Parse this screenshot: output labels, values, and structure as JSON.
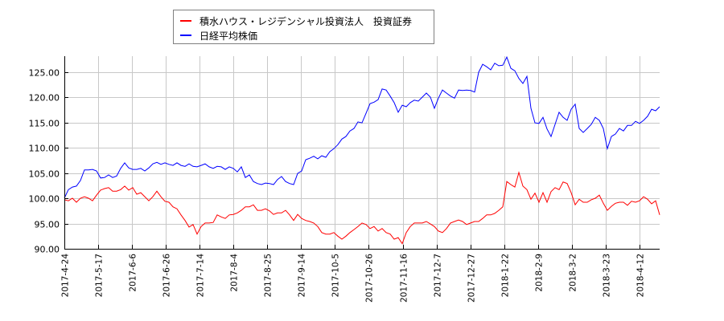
{
  "legend": {
    "items": [
      {
        "label": "積水ハウス・レジデンシャル投資法人　投資証券",
        "color": "#ff0000"
      },
      {
        "label": "日経平均株価",
        "color": "#0000ff"
      }
    ]
  },
  "chart_data": {
    "type": "line",
    "title": "",
    "xlabel": "",
    "ylabel": "",
    "ylim": [
      90,
      128
    ],
    "grid": true,
    "legend_position": "top",
    "y_ticks": [
      "90.00",
      "95.00",
      "100.00",
      "105.00",
      "110.00",
      "115.00",
      "120.00",
      "125.00"
    ],
    "x_ticks": [
      "2017-4-24",
      "2017-5-17",
      "2017-6-6",
      "2017-6-26",
      "2017-7-14",
      "2017-8-4",
      "2017-8-25",
      "2017-9-14",
      "2017-10-5",
      "2017-10-26",
      "2017-11-16",
      "2017-12-7",
      "2017-12-27",
      "2018-1-22",
      "2018-2-9",
      "2018-3-2",
      "2018-3-23",
      "2018-4-12"
    ],
    "x_range": [
      "2017-4-24",
      "2018-4-27"
    ],
    "series": [
      {
        "name": "積水ハウス・レジデンシャル投資法人　投資証券",
        "color": "#ff0000",
        "values": [
          99.7,
          99.5,
          100.0,
          99.2,
          100.0,
          100.3,
          100.0,
          99.5,
          100.6,
          101.6,
          101.9,
          102.1,
          101.4,
          101.4,
          101.7,
          102.4,
          101.6,
          102.1,
          100.8,
          101.1,
          100.3,
          99.5,
          100.3,
          101.4,
          100.3,
          99.4,
          99.2,
          98.3,
          97.9,
          96.7,
          95.6,
          94.3,
          94.8,
          92.9,
          94.4,
          95.1,
          95.1,
          95.2,
          96.7,
          96.3,
          96.0,
          96.7,
          96.8,
          97.1,
          97.6,
          98.3,
          98.3,
          98.7,
          97.6,
          97.6,
          97.9,
          97.5,
          96.8,
          97.1,
          97.1,
          97.6,
          96.7,
          95.6,
          96.8,
          96.0,
          95.6,
          95.4,
          95.1,
          94.4,
          93.2,
          92.9,
          92.9,
          93.2,
          92.5,
          91.9,
          92.5,
          93.2,
          93.8,
          94.4,
          95.1,
          94.8,
          94.0,
          94.4,
          93.5,
          94.0,
          93.2,
          92.9,
          91.9,
          92.2,
          91.0,
          93.2,
          94.4,
          95.1,
          95.1,
          95.1,
          95.4,
          94.9,
          94.4,
          93.5,
          93.2,
          94.0,
          95.1,
          95.4,
          95.7,
          95.4,
          94.8,
          95.1,
          95.4,
          95.4,
          96.0,
          96.7,
          96.7,
          97.0,
          97.6,
          98.3,
          103.3,
          102.7,
          102.2,
          105.1,
          102.4,
          101.7,
          99.8,
          101.0,
          99.2,
          101.1,
          99.2,
          101.3,
          102.1,
          101.7,
          103.2,
          102.9,
          101.1,
          98.7,
          99.8,
          99.2,
          99.2,
          99.7,
          100.0,
          100.6,
          99.0,
          97.6,
          98.4,
          99.0,
          99.2,
          99.2,
          98.6,
          99.4,
          99.2,
          99.5,
          100.3,
          99.8,
          98.9,
          99.5,
          96.7
        ]
      },
      {
        "name": "日経平均株価",
        "color": "#0000ff",
        "values": [
          100.0,
          101.7,
          102.2,
          102.4,
          103.5,
          105.6,
          105.6,
          105.7,
          105.4,
          104.0,
          104.1,
          104.6,
          104.1,
          104.4,
          105.9,
          107.0,
          106.0,
          105.7,
          105.7,
          105.9,
          105.4,
          106.0,
          106.8,
          107.1,
          106.7,
          107.0,
          106.7,
          106.5,
          107.0,
          106.5,
          106.3,
          106.8,
          106.3,
          106.2,
          106.5,
          106.8,
          106.2,
          105.9,
          106.3,
          106.2,
          105.7,
          106.2,
          105.9,
          105.2,
          106.2,
          104.1,
          104.6,
          103.3,
          102.9,
          102.7,
          103.0,
          102.9,
          102.7,
          103.7,
          104.3,
          103.3,
          102.9,
          102.7,
          104.9,
          105.4,
          107.6,
          107.9,
          108.3,
          107.8,
          108.4,
          108.1,
          109.2,
          109.8,
          110.6,
          111.7,
          112.2,
          113.3,
          113.8,
          115.1,
          114.9,
          116.8,
          118.7,
          119.0,
          119.5,
          121.6,
          121.4,
          120.2,
          118.9,
          117.0,
          118.4,
          118.1,
          118.9,
          119.4,
          119.2,
          120.0,
          120.8,
          120.0,
          117.8,
          119.8,
          121.4,
          120.8,
          120.2,
          119.8,
          121.4,
          121.3,
          121.4,
          121.3,
          121.0,
          124.9,
          126.5,
          126.0,
          125.4,
          126.7,
          126.2,
          126.3,
          127.9,
          125.7,
          125.2,
          123.7,
          122.7,
          124.1,
          117.8,
          114.9,
          114.8,
          116.0,
          113.7,
          112.2,
          114.6,
          117.0,
          116.0,
          115.4,
          117.6,
          118.6,
          113.8,
          113.0,
          113.8,
          114.6,
          116.0,
          115.4,
          113.8,
          109.8,
          112.2,
          112.7,
          113.8,
          113.3,
          114.4,
          114.4,
          115.2,
          114.8,
          115.4,
          116.2,
          117.6,
          117.3,
          118.1
        ]
      }
    ]
  }
}
